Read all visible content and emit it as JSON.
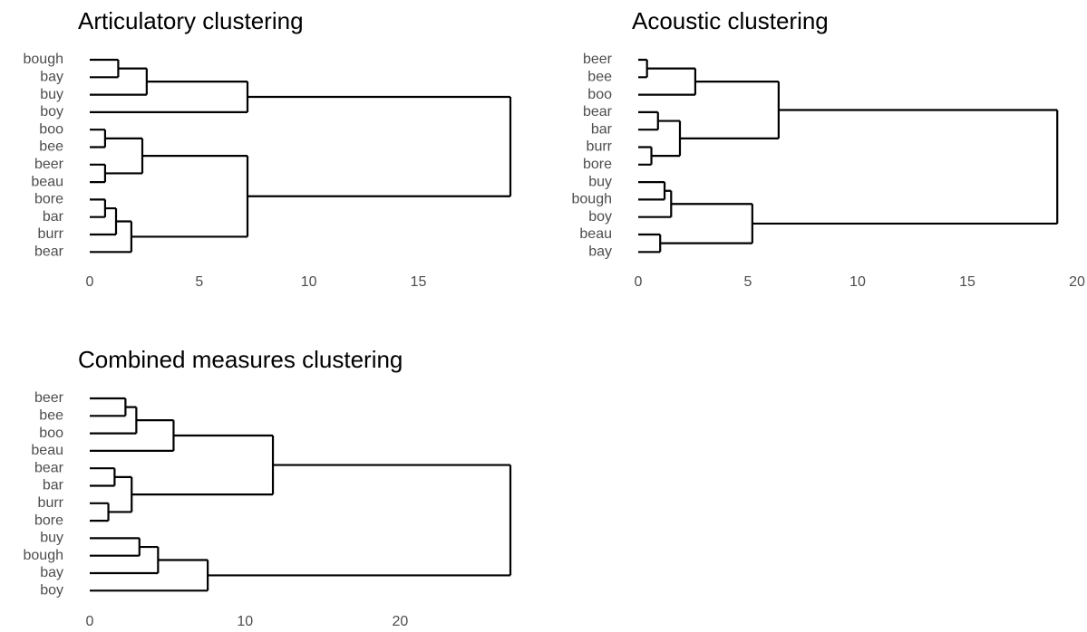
{
  "chart_data": [
    {
      "type": "dendrogram",
      "title": "Articulatory clustering",
      "xlim": [
        0,
        19.2
      ],
      "xticks": [
        0,
        5,
        10,
        15
      ],
      "tree": {
        "height": 19.2,
        "children": [
          {
            "height": 7.2,
            "children": [
              {
                "height": 2.6,
                "children": [
                  {
                    "height": 1.3,
                    "children": [
                      "bough",
                      "bay"
                    ]
                  },
                  "buy"
                ]
              },
              "boy"
            ]
          },
          {
            "height": 7.2,
            "children": [
              {
                "height": 2.4,
                "children": [
                  {
                    "height": 0.7,
                    "children": [
                      "boo",
                      "bee"
                    ]
                  },
                  {
                    "height": 0.7,
                    "children": [
                      "beer",
                      "beau"
                    ]
                  }
                ]
              },
              {
                "height": 1.9,
                "children": [
                  {
                    "height": 1.2,
                    "children": [
                      {
                        "height": 0.7,
                        "children": [
                          "bore",
                          "bar"
                        ]
                      },
                      "burr"
                    ]
                  },
                  "bear"
                ]
              }
            ]
          }
        ]
      }
    },
    {
      "type": "dendrogram",
      "title": "Acoustic clustering",
      "xlim": [
        0,
        20
      ],
      "xticks": [
        0,
        5,
        10,
        15,
        20
      ],
      "tree": {
        "height": 19.1,
        "children": [
          {
            "height": 6.4,
            "children": [
              {
                "height": 2.6,
                "children": [
                  {
                    "height": 0.4,
                    "children": [
                      "beer",
                      "bee"
                    ]
                  },
                  "boo"
                ]
              },
              {
                "height": 1.9,
                "children": [
                  {
                    "height": 0.9,
                    "children": [
                      "bear",
                      "bar"
                    ]
                  },
                  {
                    "height": 0.6,
                    "children": [
                      "burr",
                      "bore"
                    ]
                  }
                ]
              }
            ]
          },
          {
            "height": 5.2,
            "children": [
              {
                "height": 1.5,
                "children": [
                  {
                    "height": 1.2,
                    "children": [
                      "buy",
                      "bough"
                    ]
                  },
                  "boy"
                ]
              },
              {
                "height": 1.0,
                "children": [
                  "beau",
                  "bay"
                ]
              }
            ]
          }
        ]
      }
    },
    {
      "type": "dendrogram",
      "title": "Combined measures clustering",
      "xlim": [
        0,
        27.1
      ],
      "xticks": [
        0,
        10,
        20
      ],
      "tree": {
        "height": 27.1,
        "children": [
          {
            "height": 11.8,
            "children": [
              {
                "height": 5.4,
                "children": [
                  {
                    "height": 3.0,
                    "children": [
                      {
                        "height": 2.3,
                        "children": [
                          "beer",
                          "bee"
                        ]
                      },
                      "boo"
                    ]
                  },
                  "beau"
                ]
              },
              {
                "height": 2.7,
                "children": [
                  {
                    "height": 1.6,
                    "children": [
                      "bear",
                      "bar"
                    ]
                  },
                  {
                    "height": 1.2,
                    "children": [
                      "burr",
                      "bore"
                    ]
                  }
                ]
              }
            ]
          },
          {
            "height": 7.6,
            "children": [
              {
                "height": 4.4,
                "children": [
                  {
                    "height": 3.2,
                    "children": [
                      "buy",
                      "bough"
                    ]
                  },
                  "bay"
                ]
              },
              "boy"
            ]
          }
        ]
      }
    }
  ]
}
